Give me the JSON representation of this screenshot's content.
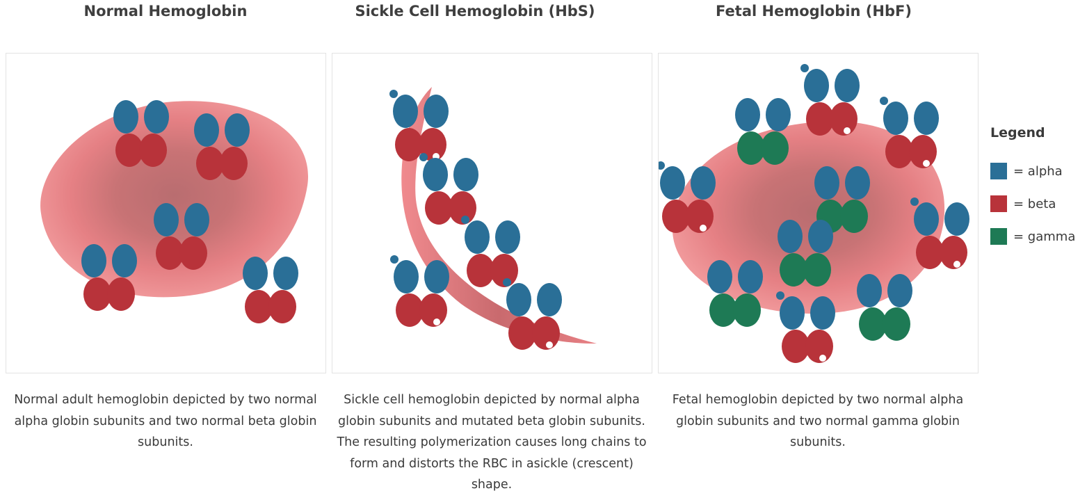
{
  "panels": [
    {
      "title": "Normal Hemoglobin",
      "caption": "Normal adult hemoglobin depicted by two normal alpha globin subunits and two normal beta globin subunits."
    },
    {
      "title": "Sickle Cell Hemoglobin (HbS)",
      "caption": "Sickle cell hemoglobin depicted by normal alpha globin subunits and mutated beta globin subunits. The resulting polymerization causes long chains to form and distorts the RBC in asickle (crescent) shape."
    },
    {
      "title": "Fetal Hemoglobin (HbF)",
      "caption": "Fetal hemoglobin depicted by two normal alpha globin subunits and two normal gamma globin subunits."
    }
  ],
  "legend": {
    "title": "Legend",
    "items": [
      {
        "label": "= alpha",
        "color": "#2a6f97"
      },
      {
        "label": "= beta",
        "color": "#b8333a"
      },
      {
        "label": "= gamma",
        "color": "#1e7a55"
      }
    ]
  },
  "colors": {
    "alpha": "#2a6f97",
    "beta": "#b8333a",
    "gamma": "#1e7a55",
    "cell": "#e8787c",
    "cell_center": "#b96d70"
  }
}
